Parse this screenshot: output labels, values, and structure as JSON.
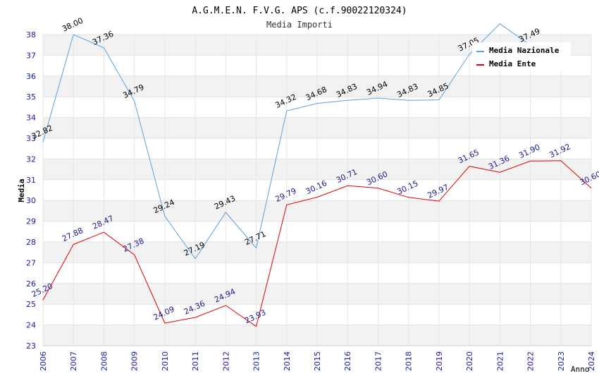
{
  "chart_data": {
    "type": "line",
    "title": "A.G.M.E.N. F.V.G. APS (c.f.90022120324)",
    "subtitle": "Media Importi",
    "ylabel": "Media",
    "xlabel": "Anno",
    "ylim": [
      23,
      38
    ],
    "yticks": [
      23,
      24,
      25,
      26,
      27,
      28,
      29,
      30,
      31,
      32,
      33,
      34,
      35,
      36,
      37,
      38
    ],
    "categories": [
      "2006",
      "2007",
      "2008",
      "2009",
      "2010",
      "2011",
      "2012",
      "2013",
      "2014",
      "2015",
      "2016",
      "2017",
      "2018",
      "2019",
      "2020",
      "2021",
      "2022",
      "2023",
      "2024"
    ],
    "legend_position": "top-right",
    "grid": true,
    "series": [
      {
        "name": "Media Nazionale",
        "color": "#5aa0e0",
        "label_color": "#000000",
        "values": [
          32.82,
          38.0,
          37.36,
          34.79,
          29.24,
          27.19,
          29.43,
          27.71,
          34.32,
          34.68,
          34.83,
          34.94,
          34.83,
          34.85,
          37.05,
          38.52,
          37.49,
          null,
          null
        ],
        "labels": [
          "32.82",
          "38.00",
          "37.36",
          "34.79",
          "29.24",
          "27.19",
          "29.43",
          "27.71",
          "34.32",
          "34.68",
          "34.83",
          "34.94",
          "34.83",
          "34.85",
          "37.05",
          "",
          "37.49",
          "",
          ""
        ]
      },
      {
        "name": "Media Ente",
        "color": "#e00000",
        "label_color": "#1a1a8c",
        "values": [
          25.2,
          27.88,
          28.47,
          27.38,
          24.09,
          24.36,
          24.94,
          23.93,
          29.79,
          30.16,
          30.71,
          30.6,
          30.15,
          29.97,
          31.65,
          31.36,
          31.9,
          31.92,
          30.6
        ],
        "labels": [
          "25.20",
          "27.88",
          "28.47",
          "27.38",
          "24.09",
          "24.36",
          "24.94",
          "23.93",
          "29.79",
          "30.16",
          "30.71",
          "30.60",
          "30.15",
          "29.97",
          "31.65",
          "31.36",
          "31.90",
          "31.92",
          "30.60"
        ]
      }
    ]
  }
}
